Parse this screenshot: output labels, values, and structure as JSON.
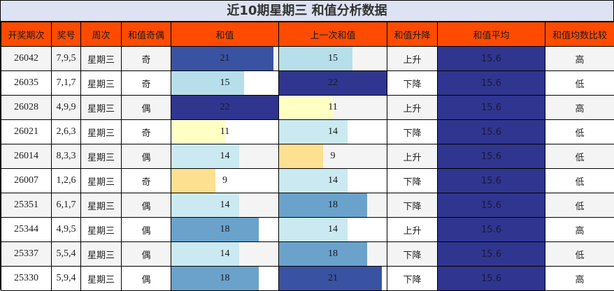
{
  "title": "近10期星期三 和值分析数据",
  "headers": [
    "开奖期次",
    "奖号",
    "周次",
    "和值奇偶",
    "和值",
    "上一次和值",
    "和值升降",
    "和值平均",
    "和值均数比较"
  ],
  "max_sum": 22,
  "color_scale": {
    "22": "#303590",
    "21": "#3a52a2",
    "18": "#6aa2cc",
    "15": "#b6dfeb",
    "14": "#cbe9f1",
    "11": "#ffffc4",
    "9": "#fde090"
  },
  "rows": [
    {
      "issue": "26042",
      "numbers": "7,9,5",
      "weekday": "星期三",
      "parity": "奇",
      "sum": 21,
      "prev_sum": 15,
      "trend": "上升",
      "avg": "15.6",
      "compare": "高"
    },
    {
      "issue": "26035",
      "numbers": "7,1,7",
      "weekday": "星期三",
      "parity": "奇",
      "sum": 15,
      "prev_sum": 22,
      "trend": "下降",
      "avg": "15.6",
      "compare": "低"
    },
    {
      "issue": "26028",
      "numbers": "4,9,9",
      "weekday": "星期三",
      "parity": "偶",
      "sum": 22,
      "prev_sum": 11,
      "trend": "上升",
      "avg": "15.6",
      "compare": "高"
    },
    {
      "issue": "26021",
      "numbers": "2,6,3",
      "weekday": "星期三",
      "parity": "奇",
      "sum": 11,
      "prev_sum": 14,
      "trend": "下降",
      "avg": "15.6",
      "compare": "低"
    },
    {
      "issue": "26014",
      "numbers": "8,3,3",
      "weekday": "星期三",
      "parity": "偶",
      "sum": 14,
      "prev_sum": 9,
      "trend": "上升",
      "avg": "15.6",
      "compare": "低"
    },
    {
      "issue": "26007",
      "numbers": "1,2,6",
      "weekday": "星期三",
      "parity": "奇",
      "sum": 9,
      "prev_sum": 14,
      "trend": "下降",
      "avg": "15.6",
      "compare": "低"
    },
    {
      "issue": "25351",
      "numbers": "6,1,7",
      "weekday": "星期三",
      "parity": "偶",
      "sum": 14,
      "prev_sum": 18,
      "trend": "下降",
      "avg": "15.6",
      "compare": "低"
    },
    {
      "issue": "25344",
      "numbers": "4,9,5",
      "weekday": "星期三",
      "parity": "偶",
      "sum": 18,
      "prev_sum": 14,
      "trend": "上升",
      "avg": "15.6",
      "compare": "高"
    },
    {
      "issue": "25337",
      "numbers": "5,5,4",
      "weekday": "星期三",
      "parity": "偶",
      "sum": 14,
      "prev_sum": 18,
      "trend": "下降",
      "avg": "15.6",
      "compare": "低"
    },
    {
      "issue": "25330",
      "numbers": "5,9,4",
      "weekday": "星期三",
      "parity": "偶",
      "sum": 18,
      "prev_sum": 21,
      "trend": "下降",
      "avg": "15.6",
      "compare": "高"
    }
  ]
}
